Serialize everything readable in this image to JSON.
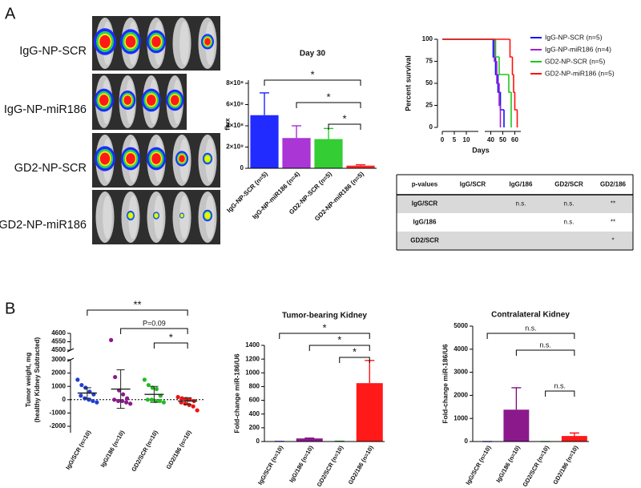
{
  "panel_labels": [
    "A",
    "B"
  ],
  "images": {
    "labels": [
      "IgG-NP-SCR",
      "IgG-NP-miR186",
      "GD2-NP-SCR",
      "GD2-NP-miR186"
    ]
  },
  "chart_data": [
    {
      "type": "bar",
      "title": "Day 30",
      "ylabel": "flux",
      "categories": [
        "IgG-NP-SCR (n=5)",
        "IgG-NP-miR186 (n=4)",
        "GD2-NP-SCR (n=5)",
        "GD2-NP-miR186 (n=5)"
      ],
      "values": [
        500000000,
        285000000,
        275000000,
        25000000
      ],
      "errors": [
        210000000,
        115000000,
        100000000,
        8000000
      ],
      "colors": [
        "#0a14ff",
        "#a020d0",
        "#1ec81e",
        "#ff1010"
      ],
      "ylim": [
        0,
        830000000
      ],
      "yticks": [
        0,
        {
          "value": 200000000,
          "label": "2×10⁸"
        },
        {
          "value": 400000000,
          "label": "4×10⁸"
        },
        {
          "value": 600000000,
          "label": "6×10⁸"
        },
        {
          "value": 800000000,
          "label": "8×10⁸"
        }
      ],
      "annotations": [
        "*",
        "*",
        "*"
      ]
    },
    {
      "type": "survival",
      "ylabel": "Percent survival",
      "xlabel": "Days",
      "series": [
        {
          "name": "IgG-NP-SCR (n=5)",
          "color": "#0a14ff",
          "x": [
            0,
            42,
            44,
            46,
            48,
            51
          ],
          "values": [
            100,
            80,
            60,
            40,
            20,
            0
          ]
        },
        {
          "name": "IgG-NP-miR186 (n=4)",
          "color": "#a020d0",
          "x": [
            0,
            43,
            45,
            47,
            48
          ],
          "values": [
            100,
            75,
            50,
            25,
            0
          ]
        },
        {
          "name": "GD2-NP-SCR (n=5)",
          "color": "#1ec81e",
          "x": [
            0,
            44,
            47,
            55,
            57
          ],
          "values": [
            100,
            80,
            60,
            40,
            0
          ]
        },
        {
          "name": "GD2-NP-miR186 (n=5)",
          "color": "#ff1010",
          "x": [
            0,
            56,
            58,
            59,
            60,
            62
          ],
          "values": [
            100,
            80,
            60,
            40,
            20,
            0
          ]
        }
      ],
      "xlim": [
        0,
        65
      ],
      "xbreak": [
        15,
        35
      ],
      "xticks": [
        0,
        5,
        10,
        40,
        50,
        60
      ],
      "ylim": [
        0,
        100
      ],
      "yticks": [
        0,
        25,
        50,
        75,
        100
      ]
    },
    {
      "type": "dot",
      "ylabel": [
        "Tumor weight, mg",
        "(healthy Kidney Subtracted)"
      ],
      "categories": [
        "IgG/SCR (n=10)",
        "IgG/186 (n=10)",
        "GD2/SCR (n=10)",
        "GD2/186 (n=10)"
      ],
      "points": [
        [
          1500,
          1100,
          900,
          600,
          400,
          300,
          100,
          0,
          -100,
          -200
        ],
        [
          4560,
          1700,
          700,
          400,
          100,
          0,
          -100,
          -100,
          -200,
          -300
        ],
        [
          1500,
          1100,
          900,
          800,
          300,
          0,
          0,
          -100,
          -100,
          -200
        ],
        [
          200,
          100,
          50,
          0,
          -100,
          -200,
          -300,
          -400,
          -500,
          -800
        ]
      ],
      "means": [
        500,
        800,
        400,
        -100
      ],
      "sd": [
        400,
        1450,
        600,
        250
      ],
      "colors": [
        "#1f3fd6",
        "#8b1a8b",
        "#22bb22",
        "#ee1111"
      ],
      "ylim": [
        -2000,
        4600
      ],
      "ybreak": [
        3000,
        4500
      ],
      "yticks": [
        -2000,
        -1000,
        0,
        1000,
        2000,
        3000,
        4500,
        4550,
        4600
      ],
      "zero_line": true,
      "annotations": [
        "**",
        "P=0.09",
        "*"
      ]
    },
    {
      "type": "bar",
      "title": "Tumor-bearing Kidney",
      "ylabel": "Fold-change miR-186/U6",
      "categories": [
        "IgG/SCR (n=10)",
        "IgG/186 (n=10)",
        "GD2/SCR (n=10)",
        "GD2/186 (n=10)"
      ],
      "values": [
        2,
        45,
        5,
        850
      ],
      "errors": [
        0,
        5,
        0,
        330
      ],
      "colors": [
        "#0000ff",
        "#800080",
        "#00a000",
        "#ff0000"
      ],
      "ylim": [
        0,
        1400
      ],
      "yticks": [
        0,
        200,
        400,
        600,
        800,
        1000,
        1200,
        1400
      ],
      "annotations": [
        "*",
        "*",
        "*"
      ]
    },
    {
      "type": "bar",
      "title": "Contralateral Kidney",
      "ylabel": "Fold-change miR-186/U6",
      "categories": [
        "IgG/SCR (n=10)",
        "IgG/186 (n=10)",
        "GD2/SCR (n=10)",
        "GD2/186 (n=10)"
      ],
      "values": [
        0,
        1380,
        0,
        240
      ],
      "errors": [
        0,
        950,
        0,
        130
      ],
      "colors": [
        "#0000ff",
        "#800080",
        "#00a000",
        "#ff0000"
      ],
      "ylim": [
        0,
        5000
      ],
      "yticks": [
        0,
        1000,
        2000,
        3000,
        4000,
        5000
      ],
      "annotations": [
        "n.s.",
        "n.s.",
        "n.s."
      ]
    }
  ],
  "table": {
    "header": [
      "p-values",
      "IgG/SCR",
      "IgG/186",
      "GD2/SCR",
      "GD2/186"
    ],
    "rows": [
      [
        "IgG/SCR",
        null,
        "n.s.",
        "n.s.",
        "**"
      ],
      [
        "IgG/186",
        null,
        null,
        "n.s.",
        "**"
      ],
      [
        "GD2/SCR",
        null,
        null,
        null,
        "*"
      ]
    ]
  }
}
